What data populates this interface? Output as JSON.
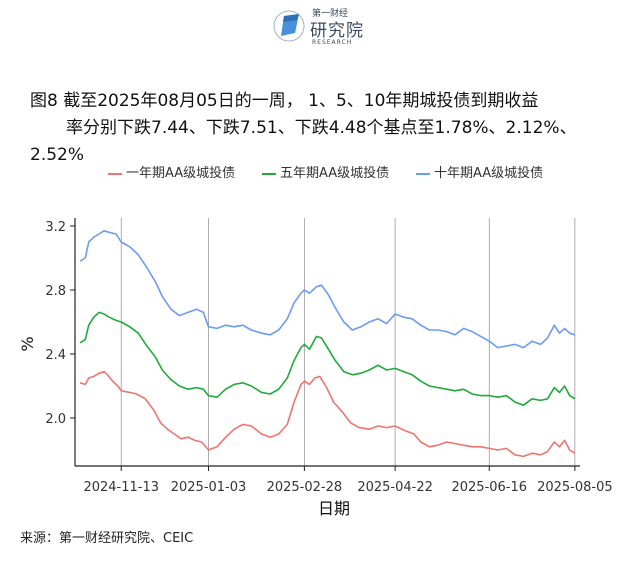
{
  "header": {
    "logo_top": "第一财经",
    "logo_cn": "研究院",
    "logo_en": "RESEARCH"
  },
  "title": {
    "line1": "图8  截至2025年08月05日的一周， 1、5、10年期城投债到期收益",
    "line2": "率分别下跌7.44、下跌7.51、下跌4.48个基点至1.78%、2.12%、",
    "line3": "2.52%"
  },
  "source": "来源：第一财经研究院、CEIC",
  "colors": {
    "s1": "#F0746E",
    "s5": "#1FAA3A",
    "s10": "#6C9BF2",
    "grid": "#9a9a9a",
    "axis": "#222222"
  },
  "chart_data": {
    "type": "line",
    "xlabel": "日期",
    "ylabel": "%",
    "ylim": [
      1.7,
      3.25
    ],
    "yticks": [
      2.0,
      2.4,
      2.8,
      3.2
    ],
    "ytick_labels": [
      "2.0",
      "2.4",
      "2.8",
      "3.2"
    ],
    "x_start": "2024-10-17",
    "x_end": "2025-08-08",
    "xticks": [
      "2024-11-13",
      "2025-01-03",
      "2025-02-28",
      "2025-04-22",
      "2025-06-16",
      "2025-08-05"
    ],
    "grid": "vertical lines at x ticks",
    "legend_position": "top",
    "series": [
      {
        "name": "一年期AA级城投债",
        "color": "#F0746E",
        "points": [
          [
            "2024-10-20",
            2.22
          ],
          [
            "2024-10-23",
            2.21
          ],
          [
            "2024-10-25",
            2.25
          ],
          [
            "2024-10-28",
            2.26
          ],
          [
            "2024-10-31",
            2.28
          ],
          [
            "2024-11-03",
            2.29
          ],
          [
            "2024-11-05",
            2.27
          ],
          [
            "2024-11-08",
            2.23
          ],
          [
            "2024-11-11",
            2.2
          ],
          [
            "2024-11-13",
            2.17
          ],
          [
            "2024-11-18",
            2.16
          ],
          [
            "2024-11-22",
            2.15
          ],
          [
            "2024-11-27",
            2.12
          ],
          [
            "2024-12-02",
            2.05
          ],
          [
            "2024-12-06",
            1.97
          ],
          [
            "2024-12-10",
            1.93
          ],
          [
            "2024-12-14",
            1.9
          ],
          [
            "2024-12-18",
            1.87
          ],
          [
            "2024-12-22",
            1.88
          ],
          [
            "2024-12-26",
            1.86
          ],
          [
            "2024-12-30",
            1.85
          ],
          [
            "2025-01-03",
            1.8
          ],
          [
            "2025-01-08",
            1.82
          ],
          [
            "2025-01-13",
            1.88
          ],
          [
            "2025-01-18",
            1.93
          ],
          [
            "2025-01-23",
            1.96
          ],
          [
            "2025-01-28",
            1.95
          ],
          [
            "2025-02-03",
            1.9
          ],
          [
            "2025-02-08",
            1.88
          ],
          [
            "2025-02-13",
            1.9
          ],
          [
            "2025-02-18",
            1.96
          ],
          [
            "2025-02-22",
            2.1
          ],
          [
            "2025-02-26",
            2.21
          ],
          [
            "2025-02-28",
            2.23
          ],
          [
            "2025-03-03",
            2.21
          ],
          [
            "2025-03-06",
            2.25
          ],
          [
            "2025-03-09",
            2.26
          ],
          [
            "2025-03-13",
            2.19
          ],
          [
            "2025-03-17",
            2.1
          ],
          [
            "2025-03-22",
            2.04
          ],
          [
            "2025-03-27",
            1.97
          ],
          [
            "2025-04-01",
            1.94
          ],
          [
            "2025-04-07",
            1.93
          ],
          [
            "2025-04-12",
            1.95
          ],
          [
            "2025-04-17",
            1.94
          ],
          [
            "2025-04-22",
            1.95
          ],
          [
            "2025-04-28",
            1.92
          ],
          [
            "2025-05-03",
            1.9
          ],
          [
            "2025-05-07",
            1.85
          ],
          [
            "2025-05-12",
            1.82
          ],
          [
            "2025-05-17",
            1.83
          ],
          [
            "2025-05-22",
            1.85
          ],
          [
            "2025-05-27",
            1.84
          ],
          [
            "2025-06-01",
            1.83
          ],
          [
            "2025-06-06",
            1.82
          ],
          [
            "2025-06-11",
            1.82
          ],
          [
            "2025-06-16",
            1.81
          ],
          [
            "2025-06-21",
            1.8
          ],
          [
            "2025-06-26",
            1.81
          ],
          [
            "2025-07-01",
            1.77
          ],
          [
            "2025-07-06",
            1.76
          ],
          [
            "2025-07-11",
            1.78
          ],
          [
            "2025-07-16",
            1.77
          ],
          [
            "2025-07-20",
            1.79
          ],
          [
            "2025-07-24",
            1.85
          ],
          [
            "2025-07-27",
            1.82
          ],
          [
            "2025-07-30",
            1.86
          ],
          [
            "2025-08-02",
            1.8
          ],
          [
            "2025-08-05",
            1.78
          ]
        ]
      },
      {
        "name": "五年期AA级城投债",
        "color": "#1FAA3A",
        "points": [
          [
            "2024-10-20",
            2.47
          ],
          [
            "2024-10-23",
            2.49
          ],
          [
            "2024-10-25",
            2.58
          ],
          [
            "2024-10-28",
            2.63
          ],
          [
            "2024-10-31",
            2.66
          ],
          [
            "2024-11-03",
            2.65
          ],
          [
            "2024-11-06",
            2.63
          ],
          [
            "2024-11-10",
            2.61
          ],
          [
            "2024-11-13",
            2.6
          ],
          [
            "2024-11-18",
            2.57
          ],
          [
            "2024-11-23",
            2.53
          ],
          [
            "2024-11-28",
            2.45
          ],
          [
            "2024-12-03",
            2.38
          ],
          [
            "2024-12-07",
            2.3
          ],
          [
            "2024-12-12",
            2.24
          ],
          [
            "2024-12-17",
            2.2
          ],
          [
            "2024-12-22",
            2.18
          ],
          [
            "2024-12-27",
            2.19
          ],
          [
            "2024-12-31",
            2.18
          ],
          [
            "2025-01-03",
            2.14
          ],
          [
            "2025-01-08",
            2.13
          ],
          [
            "2025-01-13",
            2.18
          ],
          [
            "2025-01-18",
            2.21
          ],
          [
            "2025-01-23",
            2.22
          ],
          [
            "2025-01-28",
            2.2
          ],
          [
            "2025-02-03",
            2.16
          ],
          [
            "2025-02-08",
            2.15
          ],
          [
            "2025-02-13",
            2.18
          ],
          [
            "2025-02-18",
            2.25
          ],
          [
            "2025-02-22",
            2.36
          ],
          [
            "2025-02-26",
            2.44
          ],
          [
            "2025-02-28",
            2.46
          ],
          [
            "2025-03-03",
            2.43
          ],
          [
            "2025-03-07",
            2.51
          ],
          [
            "2025-03-10",
            2.5
          ],
          [
            "2025-03-14",
            2.43
          ],
          [
            "2025-03-18",
            2.36
          ],
          [
            "2025-03-23",
            2.29
          ],
          [
            "2025-03-28",
            2.27
          ],
          [
            "2025-04-02",
            2.28
          ],
          [
            "2025-04-07",
            2.3
          ],
          [
            "2025-04-12",
            2.33
          ],
          [
            "2025-04-17",
            2.3
          ],
          [
            "2025-04-22",
            2.31
          ],
          [
            "2025-04-27",
            2.29
          ],
          [
            "2025-05-02",
            2.27
          ],
          [
            "2025-05-07",
            2.23
          ],
          [
            "2025-05-12",
            2.2
          ],
          [
            "2025-05-17",
            2.19
          ],
          [
            "2025-05-22",
            2.18
          ],
          [
            "2025-05-27",
            2.17
          ],
          [
            "2025-06-01",
            2.18
          ],
          [
            "2025-06-06",
            2.15
          ],
          [
            "2025-06-11",
            2.14
          ],
          [
            "2025-06-16",
            2.14
          ],
          [
            "2025-06-21",
            2.13
          ],
          [
            "2025-06-26",
            2.14
          ],
          [
            "2025-07-01",
            2.1
          ],
          [
            "2025-07-06",
            2.08
          ],
          [
            "2025-07-11",
            2.12
          ],
          [
            "2025-07-16",
            2.11
          ],
          [
            "2025-07-20",
            2.12
          ],
          [
            "2025-07-24",
            2.19
          ],
          [
            "2025-07-27",
            2.16
          ],
          [
            "2025-07-30",
            2.2
          ],
          [
            "2025-08-02",
            2.14
          ],
          [
            "2025-08-05",
            2.12
          ]
        ]
      },
      {
        "name": "十年期AA级城投债",
        "color": "#6C9BF2",
        "points": [
          [
            "2024-10-20",
            2.98
          ],
          [
            "2024-10-23",
            3.0
          ],
          [
            "2024-10-25",
            3.1
          ],
          [
            "2024-10-28",
            3.13
          ],
          [
            "2024-10-31",
            3.15
          ],
          [
            "2024-11-03",
            3.17
          ],
          [
            "2024-11-06",
            3.16
          ],
          [
            "2024-11-10",
            3.15
          ],
          [
            "2024-11-13",
            3.1
          ],
          [
            "2024-11-18",
            3.07
          ],
          [
            "2024-11-23",
            3.02
          ],
          [
            "2024-11-28",
            2.94
          ],
          [
            "2024-12-03",
            2.85
          ],
          [
            "2024-12-07",
            2.76
          ],
          [
            "2024-12-12",
            2.68
          ],
          [
            "2024-12-17",
            2.64
          ],
          [
            "2024-12-22",
            2.66
          ],
          [
            "2024-12-27",
            2.68
          ],
          [
            "2024-12-31",
            2.66
          ],
          [
            "2025-01-03",
            2.57
          ],
          [
            "2025-01-08",
            2.56
          ],
          [
            "2025-01-13",
            2.58
          ],
          [
            "2025-01-18",
            2.57
          ],
          [
            "2025-01-23",
            2.58
          ],
          [
            "2025-01-28",
            2.55
          ],
          [
            "2025-02-03",
            2.53
          ],
          [
            "2025-02-08",
            2.52
          ],
          [
            "2025-02-13",
            2.55
          ],
          [
            "2025-02-18",
            2.62
          ],
          [
            "2025-02-22",
            2.72
          ],
          [
            "2025-02-26",
            2.78
          ],
          [
            "2025-02-28",
            2.8
          ],
          [
            "2025-03-03",
            2.78
          ],
          [
            "2025-03-07",
            2.82
          ],
          [
            "2025-03-10",
            2.83
          ],
          [
            "2025-03-14",
            2.77
          ],
          [
            "2025-03-18",
            2.69
          ],
          [
            "2025-03-23",
            2.6
          ],
          [
            "2025-03-28",
            2.55
          ],
          [
            "2025-04-02",
            2.57
          ],
          [
            "2025-04-07",
            2.6
          ],
          [
            "2025-04-12",
            2.62
          ],
          [
            "2025-04-17",
            2.59
          ],
          [
            "2025-04-22",
            2.65
          ],
          [
            "2025-04-27",
            2.63
          ],
          [
            "2025-05-02",
            2.62
          ],
          [
            "2025-05-07",
            2.58
          ],
          [
            "2025-05-12",
            2.55
          ],
          [
            "2025-05-17",
            2.55
          ],
          [
            "2025-05-22",
            2.54
          ],
          [
            "2025-05-27",
            2.52
          ],
          [
            "2025-06-01",
            2.56
          ],
          [
            "2025-06-06",
            2.54
          ],
          [
            "2025-06-11",
            2.51
          ],
          [
            "2025-06-16",
            2.48
          ],
          [
            "2025-06-21",
            2.44
          ],
          [
            "2025-06-26",
            2.45
          ],
          [
            "2025-07-01",
            2.46
          ],
          [
            "2025-07-06",
            2.44
          ],
          [
            "2025-07-11",
            2.48
          ],
          [
            "2025-07-16",
            2.46
          ],
          [
            "2025-07-20",
            2.5
          ],
          [
            "2025-07-24",
            2.58
          ],
          [
            "2025-07-27",
            2.53
          ],
          [
            "2025-07-30",
            2.56
          ],
          [
            "2025-08-02",
            2.53
          ],
          [
            "2025-08-05",
            2.52
          ]
        ]
      }
    ]
  }
}
